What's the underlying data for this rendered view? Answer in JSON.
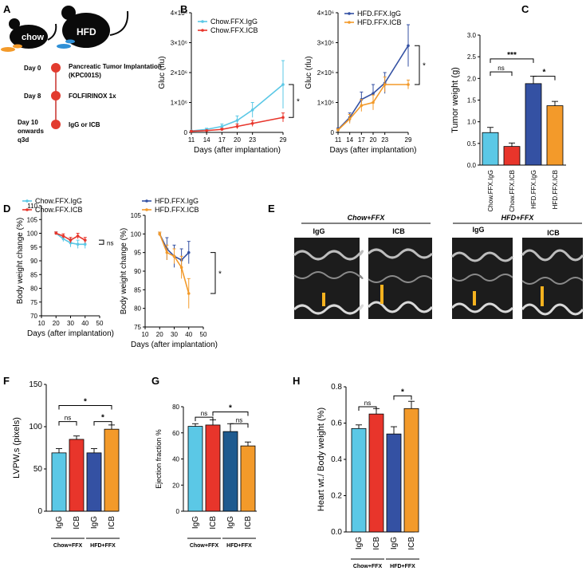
{
  "panels": {
    "A": {
      "letter": "A",
      "diet_left": "chow",
      "diet_right": "HFD",
      "timeline": [
        {
          "day": "Day 0",
          "event": "Pancreatic Tumor Implantation (KPC001S)"
        },
        {
          "day": "Day 8",
          "event": "FOLFIRINOX 1x"
        },
        {
          "day": "Day 10 onwards q3d",
          "event": "IgG or ICB"
        }
      ]
    },
    "E": {
      "letter": "E",
      "group_left": "Chow+FFX",
      "group_right": "HFD+FFX",
      "images": [
        "IgG",
        "ICB",
        "IgG",
        "ICB"
      ]
    }
  },
  "colors": {
    "chow_igg": "#5BC8E6",
    "chow_icb": "#E8352B",
    "hfd_igg": "#3451A3",
    "hfd_icb": "#F39A2A"
  },
  "chart_data": [
    {
      "id": "B1",
      "letter": "B",
      "type": "line",
      "x": [
        11,
        14,
        17,
        20,
        23,
        29
      ],
      "x_ticks": [
        "11",
        "14",
        "17",
        "20",
        "23",
        "29"
      ],
      "ylim": [
        0,
        4000000
      ],
      "y_ticks": [
        "0",
        "1×10⁶",
        "2×10⁶",
        "3×10⁶",
        "4×10⁶"
      ],
      "xlabel": "Days (after implantation)",
      "ylabel": "Gluc (rlu)",
      "series": [
        {
          "name": "Chow.FFX.IgG",
          "color": "#5BC8E6",
          "values": [
            50000,
            100000,
            200000,
            400000,
            750000,
            1600000
          ],
          "err": [
            20000,
            40000,
            80000,
            150000,
            250000,
            800000
          ]
        },
        {
          "name": "Chow.FFX.ICB",
          "color": "#E8352B",
          "values": [
            40000,
            60000,
            100000,
            200000,
            300000,
            500000
          ],
          "err": [
            15000,
            20000,
            40000,
            80000,
            100000,
            150000
          ]
        }
      ],
      "annotation": "*"
    },
    {
      "id": "B2",
      "letter": "",
      "type": "line",
      "x": [
        11,
        14,
        17,
        20,
        23,
        29
      ],
      "x_ticks": [
        "11",
        "14",
        "17",
        "20",
        "23",
        "29"
      ],
      "ylim": [
        0,
        4000000
      ],
      "y_ticks": [
        "0",
        "1×10⁶",
        "2×10⁶",
        "3×10⁶",
        "4×10⁶"
      ],
      "xlabel": "Days (after implantation)",
      "ylabel": "Gluc (rlu)",
      "series": [
        {
          "name": "HFD.FFX.IgG",
          "color": "#3451A3",
          "values": [
            100000,
            500000,
            1100000,
            1300000,
            1650000,
            2900000
          ],
          "err": [
            50000,
            150000,
            250000,
            300000,
            350000,
            700000
          ]
        },
        {
          "name": "HFD.FFX.ICB",
          "color": "#F39A2A",
          "values": [
            80000,
            450000,
            900000,
            1000000,
            1600000,
            1600000
          ],
          "err": [
            40000,
            150000,
            200000,
            250000,
            250000,
            150000
          ]
        }
      ],
      "annotation": "*"
    },
    {
      "id": "C",
      "letter": "C",
      "type": "bar",
      "categories": [
        "Chow.FFX.IgG",
        "Chow.FFX.ICB",
        "HFD.FFX.IgG",
        "HFD.FFX.ICB"
      ],
      "colors": [
        "#5BC8E6",
        "#E8352B",
        "#3451A3",
        "#F39A2A"
      ],
      "values": [
        0.75,
        0.43,
        1.88,
        1.37
      ],
      "err": [
        0.12,
        0.08,
        0.17,
        0.1
      ],
      "ylim": [
        0,
        3.0
      ],
      "y_ticks": [
        "0.0",
        "0.5",
        "1.0",
        "1.5",
        "2.0",
        "2.5",
        "3.0"
      ],
      "ylabel": "Tumor weight (g)",
      "sig": [
        {
          "from": 0,
          "to": 1,
          "label": "ns",
          "level": 2.15
        },
        {
          "from": 0,
          "to": 2,
          "label": "***",
          "level": 2.45
        },
        {
          "from": 2,
          "to": 3,
          "label": "*",
          "level": 2.05
        }
      ]
    },
    {
      "id": "D1",
      "letter": "D",
      "type": "line",
      "x": [
        20,
        25,
        30,
        35,
        40
      ],
      "x_ticks": [
        "10",
        "20",
        "30",
        "40",
        "50"
      ],
      "xlim": [
        10,
        50
      ],
      "ylim": [
        70,
        110
      ],
      "y_ticks": [
        "70",
        "75",
        "80",
        "85",
        "90",
        "95",
        "100",
        "105",
        "110"
      ],
      "xlabel": "Days (after implantation)",
      "ylabel": "Body weight change (%)",
      "series": [
        {
          "name": "Chow.FFX.IgG",
          "color": "#5BC8E6",
          "values": [
            100,
            98,
            96.5,
            96,
            96
          ],
          "err": [
            0.5,
            1.0,
            1.5,
            1.5,
            1.5
          ]
        },
        {
          "name": "Chow.FFX.ICB",
          "color": "#E8352B",
          "values": [
            100,
            99,
            97.5,
            99,
            97.5
          ],
          "err": [
            0.5,
            0.8,
            1.0,
            1.0,
            1.0
          ]
        }
      ],
      "annotation": "ns"
    },
    {
      "id": "D2",
      "letter": "",
      "type": "line",
      "x": [
        20,
        25,
        30,
        35,
        40
      ],
      "x_ticks": [
        "10",
        "20",
        "30",
        "40",
        "50"
      ],
      "xlim": [
        10,
        50
      ],
      "ylim": [
        75,
        105
      ],
      "y_ticks": [
        "75",
        "80",
        "85",
        "90",
        "95",
        "100",
        "105"
      ],
      "xlabel": "Days (after implantation)",
      "ylabel": "Body weight change (%)",
      "series": [
        {
          "name": "HFD.FFX.IgG",
          "color": "#3451A3",
          "values": [
            100,
            96,
            94,
            93,
            95
          ],
          "err": [
            0.5,
            3,
            3,
            3,
            3
          ]
        },
        {
          "name": "HFD.FFX.ICB",
          "color": "#F39A2A",
          "values": [
            100,
            95,
            94,
            91,
            84
          ],
          "err": [
            0.5,
            2,
            2,
            3,
            4
          ]
        }
      ],
      "annotation": "*"
    },
    {
      "id": "F",
      "letter": "F",
      "type": "bar",
      "categories": [
        "IgG",
        "ICB",
        "IgG",
        "ICB"
      ],
      "colors": [
        "#5BC8E6",
        "#E8352B",
        "#3451A3",
        "#F39A2A"
      ],
      "values": [
        69,
        85,
        69,
        97
      ],
      "err": [
        5,
        4,
        5,
        5
      ],
      "ylim": [
        0,
        150
      ],
      "y_ticks": [
        "0",
        "50",
        "100",
        "150"
      ],
      "ylabel": "LVPW,s (pixels)",
      "groups": [
        "Chow+FFX",
        "HFD+FFX"
      ],
      "sig": [
        {
          "from": 0,
          "to": 1,
          "label": "ns",
          "level": 106
        },
        {
          "from": 2,
          "to": 3,
          "label": "*",
          "level": 106
        },
        {
          "from": 0,
          "to": 3,
          "label": "*",
          "level": 125
        }
      ]
    },
    {
      "id": "G",
      "letter": "G",
      "type": "bar",
      "categories": [
        "IgG",
        "ICB",
        "IgG",
        "ICB"
      ],
      "colors": [
        "#5BC8E6",
        "#E8352B",
        "#1E5A8F",
        "#F39A2A"
      ],
      "values": [
        65,
        66,
        61,
        50
      ],
      "err": [
        2,
        4,
        6,
        3
      ],
      "ylim": [
        0,
        80
      ],
      "y_ticks": [
        "0",
        "20",
        "40",
        "60",
        "80"
      ],
      "ylabel": "Ejection fraction %",
      "groups": [
        "Chow+FFX",
        "HFD+FFX"
      ],
      "sig": [
        {
          "from": 0,
          "to": 1,
          "label": "ns",
          "level": 72
        },
        {
          "from": 2,
          "to": 3,
          "label": "ns",
          "level": 67
        },
        {
          "from": 1,
          "to": 3,
          "label": "*",
          "level": 76
        }
      ]
    },
    {
      "id": "H",
      "letter": "H",
      "type": "bar",
      "categories": [
        "IgG",
        "ICB",
        "IgG",
        "ICB"
      ],
      "colors": [
        "#5BC8E6",
        "#E8352B",
        "#3451A3",
        "#F39A2A"
      ],
      "values": [
        0.57,
        0.65,
        0.54,
        0.68
      ],
      "err": [
        0.02,
        0.03,
        0.04,
        0.04
      ],
      "ylim": [
        0,
        0.8
      ],
      "y_ticks": [
        "0.0",
        "0.2",
        "0.4",
        "0.6",
        "0.8"
      ],
      "ylabel": "Heart wt./ Body weight (%)",
      "groups": [
        "Chow+FFX",
        "HFD+FFX"
      ],
      "sig": [
        {
          "from": 0,
          "to": 1,
          "label": "ns",
          "level": 0.69
        },
        {
          "from": 2,
          "to": 3,
          "label": "*",
          "level": 0.75
        }
      ]
    }
  ]
}
